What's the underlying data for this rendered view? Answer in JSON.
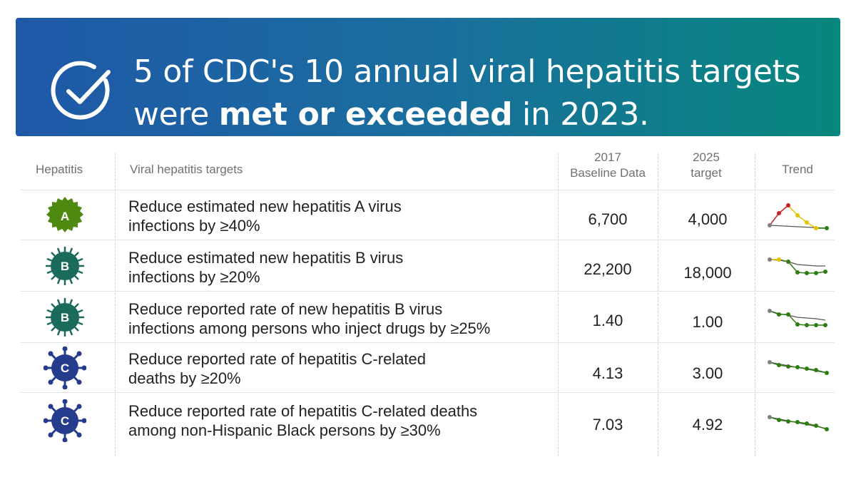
{
  "banner": {
    "title_part1": "5 of CDC's 10 annual viral hepatitis targets",
    "title_part2_pre": "were ",
    "title_part2_bold": "met or exceeded",
    "title_part2_post": " in 2023.",
    "icon": "check-circle-icon",
    "gradient_start": "#1f58a8",
    "gradient_end": "#07877d"
  },
  "table": {
    "headers": {
      "hepatitis": "Hepatitis",
      "targets": "Viral hepatitis targets",
      "baseline_line1": "2017",
      "baseline_line2": "Baseline Data",
      "target_line1": "2025",
      "target_line2": "target",
      "trend": "Trend"
    },
    "rows": [
      {
        "badge_letter": "A",
        "badge_color": "#4f8a10",
        "target_line1": "Reduce estimated new hepatitis A virus",
        "target_line2": "infections by ≥40%",
        "baseline": "6,700",
        "goal": "4,000",
        "trend_icon": "trend-sparkline-icon"
      },
      {
        "badge_letter": "B",
        "badge_color": "#1a6b5c",
        "target_line1": "Reduce estimated new hepatitis B virus",
        "target_line2": "infections by ≥20%",
        "baseline": "22,200",
        "goal": "18,000",
        "trend_icon": "trend-sparkline-icon"
      },
      {
        "badge_letter": "B",
        "badge_color": "#1a6b5c",
        "target_line1": "Reduce reported rate of new hepatitis B virus",
        "target_line2": "infections among persons who inject drugs by ≥25%",
        "baseline": "1.40",
        "goal": "1.00",
        "trend_icon": "trend-sparkline-icon"
      },
      {
        "badge_letter": "C",
        "badge_color": "#253c8c",
        "target_line1": "Reduce reported rate of hepatitis C-related",
        "target_line2": "deaths by ≥20%",
        "baseline": "4.13",
        "goal": "3.00",
        "trend_icon": "trend-sparkline-icon"
      },
      {
        "badge_letter": "C",
        "badge_color": "#253c8c",
        "target_line1": "Reduce reported rate of hepatitis C-related deaths",
        "target_line2": "among non-Hispanic Black persons by ≥30%",
        "baseline": "7.03",
        "goal": "4.92",
        "trend_icon": "trend-sparkline-icon"
      }
    ]
  },
  "trend_colors": {
    "baseline_point": "#808080",
    "worse": "#cc1f1f",
    "no_change": "#e6c200",
    "better": "#2e7d12",
    "target_line": "#555555"
  }
}
